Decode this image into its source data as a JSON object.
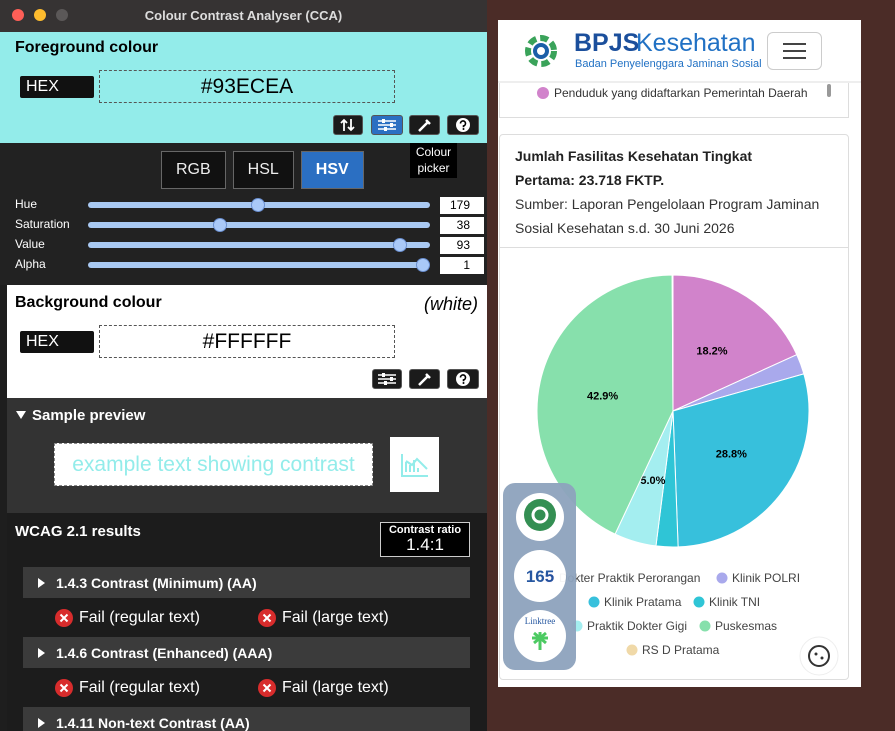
{
  "window": {
    "title": "Colour Contrast Analyser (CCA)"
  },
  "foreground": {
    "heading": "Foreground colour",
    "format": "HEX",
    "value": "#93ECEA",
    "tooltip": "Colour picker",
    "tabs": [
      "RGB",
      "HSL",
      "HSV"
    ],
    "sliders": [
      {
        "label": "Hue",
        "value": 179,
        "range": [
          0,
          360
        ]
      },
      {
        "label": "Saturation",
        "value": 38,
        "range": [
          0,
          100
        ]
      },
      {
        "label": "Value",
        "value": 93,
        "range": [
          0,
          100
        ]
      },
      {
        "label": "Alpha",
        "value": 1,
        "range": [
          0,
          1
        ]
      }
    ]
  },
  "background": {
    "heading": "Background colour",
    "name": "(white)",
    "format": "HEX",
    "value": "#FFFFFF"
  },
  "sample": {
    "heading": "Sample preview",
    "text": "example text showing contrast"
  },
  "wcag": {
    "heading": "WCAG 2.1 results",
    "ratio_label": "Contrast ratio",
    "ratio": "1.4:1",
    "criteria": [
      {
        "title": "1.4.3 Contrast (Minimum) (AA)",
        "results": [
          "Fail (regular text)",
          "Fail (large text)"
        ]
      },
      {
        "title": "1.4.6 Contrast (Enhanced) (AAA)",
        "results": [
          "Fail (regular text)",
          "Fail (large text)"
        ]
      },
      {
        "title": "1.4.11 Non-text Contrast (AA)"
      }
    ]
  },
  "site": {
    "brand": [
      "BPJS",
      "Kesehatan"
    ],
    "tagline": "Badan Penyelenggara Jaminan Sosial",
    "prev_legend": "Penduduk yang didaftarkan Pemerintah Daerah",
    "card_title": "Jumlah Fasilitas Kesehatan Tingkat Pertama: 23.718 FKTP.",
    "card_source": "Sumber: Laporan Pengelolaan Program Jaminan Sosial Kesehatan s.d. 30 Juni 2026",
    "widget": [
      "165",
      "Linktree"
    ]
  },
  "chart_data": {
    "type": "pie",
    "categories": [
      "Dokter Praktik Perorangan",
      "Klinik POLRI",
      "Klinik Pratama",
      "Klinik TNI",
      "Praktik Dokter Gigi",
      "Puskesmas",
      "RS D Pratama"
    ],
    "values": [
      18.2,
      2.4,
      28.8,
      2.6,
      5.0,
      42.9,
      0.1
    ],
    "value_labels": [
      "18.2%",
      null,
      "28.8%",
      null,
      "5.0%",
      "42.9%",
      null
    ],
    "colors": [
      "#d183cb",
      "#a9a9ec",
      "#37c0dc",
      "#2fc5d6",
      "#a4eef0",
      "#87e0ac",
      "#f0d9a8"
    ]
  }
}
